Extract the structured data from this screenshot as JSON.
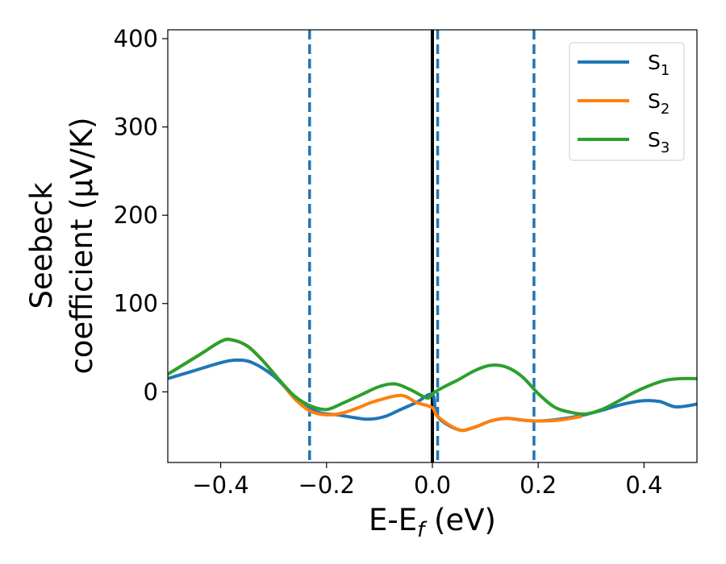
{
  "chart_data": {
    "type": "line",
    "xlabel": {
      "main": "E-E",
      "sub": "f",
      "tail": " (eV)"
    },
    "ylabel": {
      "line1": "Seebeck",
      "line2": "coefficient  (μV/K)"
    },
    "xlim": [
      -0.5,
      0.5
    ],
    "ylim": [
      -80,
      410
    ],
    "xticks": [
      -0.4,
      -0.2,
      0.0,
      0.2,
      0.4
    ],
    "xtick_labels": [
      "−0.4",
      "−0.2",
      "0.0",
      "0.2",
      "0.4"
    ],
    "yticks": [
      0,
      100,
      200,
      300,
      400
    ],
    "ytick_labels": [
      "0",
      "100",
      "200",
      "300",
      "400"
    ],
    "grid": false,
    "legend_position": "top-right",
    "vlines": [
      {
        "x": -0.232,
        "style": "dashed",
        "color": "#1f77b4"
      },
      {
        "x": 0.0,
        "style": "solid",
        "color": "#000000"
      },
      {
        "x": 0.01,
        "style": "dashed",
        "color": "#1f77b4"
      },
      {
        "x": 0.192,
        "style": "dashed",
        "color": "#1f77b4"
      }
    ],
    "series": [
      {
        "name": "S",
        "sub": "1",
        "color": "#1f77b4",
        "points": [
          [
            -0.5,
            15
          ],
          [
            -0.45,
            24
          ],
          [
            -0.4,
            33
          ],
          [
            -0.37,
            36
          ],
          [
            -0.34,
            33
          ],
          [
            -0.3,
            18
          ],
          [
            -0.27,
            0
          ],
          [
            -0.24,
            -16
          ],
          [
            -0.21,
            -24
          ],
          [
            -0.18,
            -26
          ],
          [
            -0.15,
            -29
          ],
          [
            -0.12,
            -31
          ],
          [
            -0.09,
            -28
          ],
          [
            -0.06,
            -20
          ],
          [
            -0.03,
            -12
          ],
          [
            0.0,
            -3
          ],
          [
            0.01,
            -28
          ],
          [
            0.05,
            -43
          ],
          [
            0.08,
            -40
          ],
          [
            0.11,
            -33
          ],
          [
            0.14,
            -30
          ],
          [
            0.17,
            -32
          ],
          [
            0.2,
            -33
          ],
          [
            0.24,
            -31
          ],
          [
            0.28,
            -27
          ],
          [
            0.32,
            -21
          ],
          [
            0.36,
            -14
          ],
          [
            0.4,
            -10
          ],
          [
            0.43,
            -11
          ],
          [
            0.46,
            -17
          ],
          [
            0.5,
            -14
          ]
        ]
      },
      {
        "name": "S",
        "sub": "2",
        "color": "#ff7f0e",
        "points": [
          [
            -0.5,
            20
          ],
          [
            -0.44,
            42
          ],
          [
            -0.4,
            57
          ],
          [
            -0.38,
            59
          ],
          [
            -0.35,
            52
          ],
          [
            -0.32,
            35
          ],
          [
            -0.29,
            14
          ],
          [
            -0.26,
            -8
          ],
          [
            -0.23,
            -22
          ],
          [
            -0.2,
            -26
          ],
          [
            -0.17,
            -24
          ],
          [
            -0.14,
            -18
          ],
          [
            -0.11,
            -11
          ],
          [
            -0.06,
            -4
          ],
          [
            -0.03,
            -12
          ],
          [
            0.0,
            -18
          ],
          [
            0.01,
            -28
          ],
          [
            0.05,
            -43
          ],
          [
            0.08,
            -40
          ],
          [
            0.11,
            -33
          ],
          [
            0.14,
            -30
          ],
          [
            0.17,
            -32
          ],
          [
            0.2,
            -33
          ],
          [
            0.24,
            -32
          ],
          [
            0.28,
            -28
          ]
        ]
      },
      {
        "name": "S",
        "sub": "3",
        "color": "#2ca02c",
        "points": [
          [
            -0.5,
            20
          ],
          [
            -0.44,
            42
          ],
          [
            -0.4,
            57
          ],
          [
            -0.38,
            59
          ],
          [
            -0.35,
            52
          ],
          [
            -0.32,
            35
          ],
          [
            -0.29,
            14
          ],
          [
            -0.26,
            -5
          ],
          [
            -0.23,
            -16
          ],
          [
            -0.2,
            -20
          ],
          [
            -0.17,
            -13
          ],
          [
            -0.13,
            -2
          ],
          [
            -0.1,
            6
          ],
          [
            -0.07,
            9
          ],
          [
            -0.04,
            2
          ],
          [
            -0.01,
            -7
          ],
          [
            0.0,
            -2
          ],
          [
            0.02,
            5
          ],
          [
            0.05,
            14
          ],
          [
            0.08,
            24
          ],
          [
            0.11,
            30
          ],
          [
            0.14,
            28
          ],
          [
            0.17,
            17
          ],
          [
            0.2,
            -2
          ],
          [
            0.23,
            -17
          ],
          [
            0.26,
            -23
          ],
          [
            0.29,
            -25
          ],
          [
            0.32,
            -20
          ],
          [
            0.35,
            -11
          ],
          [
            0.38,
            -1
          ],
          [
            0.41,
            7
          ],
          [
            0.44,
            13
          ],
          [
            0.47,
            15
          ],
          [
            0.5,
            15
          ]
        ]
      }
    ]
  }
}
